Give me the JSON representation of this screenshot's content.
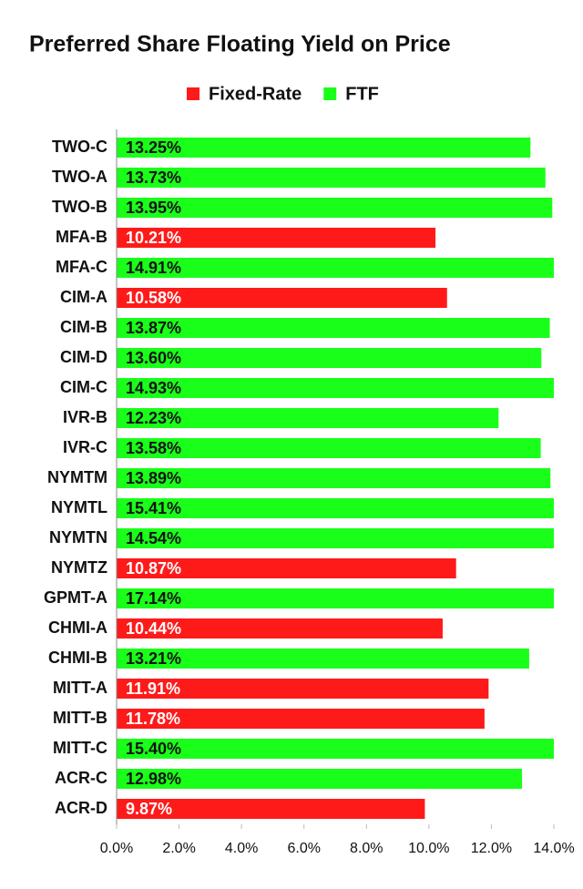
{
  "chart_data": {
    "type": "hbar",
    "title": "Preferred Share Floating Yield on Price",
    "categories": [
      "TWO-C",
      "TWO-A",
      "TWO-B",
      "MFA-B",
      "MFA-C",
      "CIM-A",
      "CIM-B",
      "CIM-D",
      "CIM-C",
      "IVR-B",
      "IVR-C",
      "NYMTM",
      "NYMTL",
      "NYMTN",
      "NYMTZ",
      "GPMT-A",
      "CHMI-A",
      "CHMI-B",
      "MITT-A",
      "MITT-B",
      "MITT-C",
      "ACR-C",
      "ACR-D"
    ],
    "series": [
      {
        "name": "Fixed-Rate",
        "color": "#ff1a1a",
        "values": [
          null,
          null,
          null,
          10.21,
          null,
          10.58,
          null,
          null,
          null,
          null,
          null,
          null,
          null,
          null,
          10.87,
          null,
          10.44,
          null,
          11.91,
          11.78,
          null,
          null,
          9.87
        ],
        "value_labels": [
          null,
          null,
          null,
          "10.21%",
          null,
          "10.58%",
          null,
          null,
          null,
          null,
          null,
          null,
          null,
          null,
          "10.87%",
          null,
          "10.44%",
          null,
          "11.91%",
          "11.78%",
          null,
          null,
          "9.87%"
        ]
      },
      {
        "name": "FTF",
        "color": "#1aff1a",
        "values": [
          13.25,
          13.73,
          13.95,
          null,
          14.91,
          null,
          13.87,
          13.6,
          14.93,
          12.23,
          13.58,
          13.89,
          15.41,
          14.54,
          null,
          17.14,
          null,
          13.21,
          null,
          null,
          15.4,
          12.98,
          null
        ],
        "value_labels": [
          "13.25%",
          "13.73%",
          "13.95%",
          null,
          "14.91%",
          null,
          "13.87%",
          "13.60%",
          "14.93%",
          "12.23%",
          "13.58%",
          "13.89%",
          "15.41%",
          "14.54%",
          null,
          "17.14%",
          null,
          "13.21%",
          null,
          null,
          "15.40%",
          "12.98%",
          null
        ]
      }
    ],
    "xlim": [
      0,
      14
    ],
    "xticks": [
      {
        "value": 0,
        "label": "0.0%"
      },
      {
        "value": 2,
        "label": "2.0%"
      },
      {
        "value": 4,
        "label": "4.0%"
      },
      {
        "value": 6,
        "label": "6.0%"
      },
      {
        "value": 8,
        "label": "8.0%"
      },
      {
        "value": 10,
        "label": "10.0%"
      },
      {
        "value": 12,
        "label": "12.0%"
      },
      {
        "value": 14,
        "label": "14.0%"
      }
    ],
    "legend": "top"
  }
}
